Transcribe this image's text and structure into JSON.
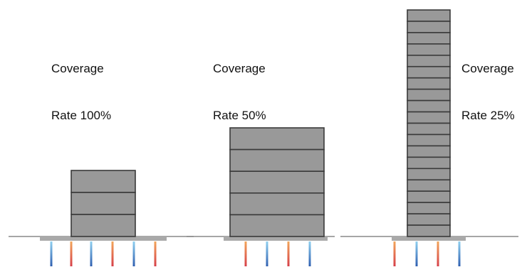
{
  "scenarios": [
    {
      "label_line1": "Coverage",
      "label_line2": "Rate 100%",
      "coverage_rate_percent": 100,
      "floors": 3,
      "pipes": 6
    },
    {
      "label_line1": "Coverage",
      "label_line2": "Rate 50%",
      "coverage_rate_percent": 50,
      "floors": 5,
      "pipes": 4
    },
    {
      "label_line1": "Coverage",
      "label_line2": "Rate 25%",
      "coverage_rate_percent": 25,
      "floors": 20,
      "pipes": 4
    }
  ],
  "colors": {
    "building_fill": "#999999",
    "building_stroke": "#3a3a3a",
    "ground_line": "#888888",
    "foundation": "#a9a9a9",
    "pipe_warm_top": "#f2a65a",
    "pipe_warm_bottom": "#d6404a",
    "pipe_cool_top": "#8fd0f0",
    "pipe_cool_bottom": "#2f5fb0"
  }
}
